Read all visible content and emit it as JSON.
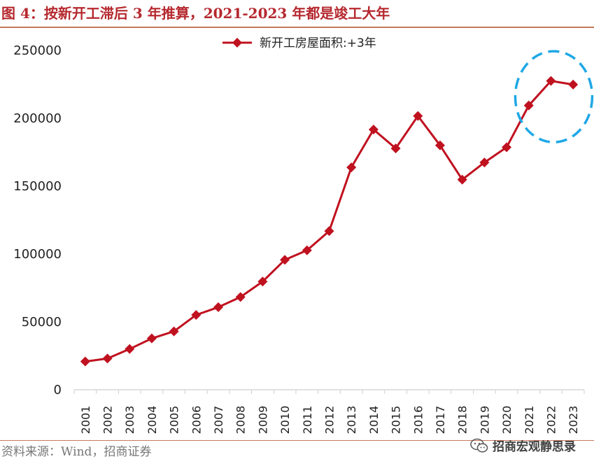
{
  "figure": {
    "title": "图 4：按新开工滞后 3 年推算，2021-2023 年都是竣工大年",
    "source": "资料来源：Wind，招商证券",
    "watermark": "招商宏观静思录",
    "watermark_icon": "wechat-icon"
  },
  "colors": {
    "title": "#b5282e",
    "rule": "#c8795c",
    "series": "#c0111f",
    "highlight": "#1ea8e6",
    "axis": "#cfcfcf",
    "tick_text": "#222222"
  },
  "chart_data": {
    "type": "line",
    "title": "",
    "xlabel": "",
    "ylabel": "",
    "categories": [
      "2001",
      "2002",
      "2003",
      "2004",
      "2005",
      "2006",
      "2007",
      "2008",
      "2009",
      "2010",
      "2011",
      "2012",
      "2013",
      "2014",
      "2015",
      "2016",
      "2017",
      "2018",
      "2019",
      "2020",
      "2021",
      "2022",
      "2023"
    ],
    "series": [
      {
        "name": "新开工房屋面积:+3年",
        "marker": "diamond",
        "values": [
          20800,
          23000,
          30000,
          37800,
          43000,
          55100,
          60800,
          68300,
          79700,
          95700,
          102700,
          116900,
          163800,
          191700,
          177800,
          201700,
          180000,
          154800,
          167400,
          178600,
          209400,
          227500,
          224800
        ]
      }
    ],
    "ylim": [
      0,
      250000
    ],
    "yticks": [
      0,
      50000,
      100000,
      150000,
      200000,
      250000
    ],
    "grid": false,
    "legend_position": "top-center",
    "x_tick_rotation": "vertical",
    "annotation": {
      "shape": "dashed-ellipse",
      "covers_categories": [
        "2021",
        "2022",
        "2023"
      ]
    }
  }
}
